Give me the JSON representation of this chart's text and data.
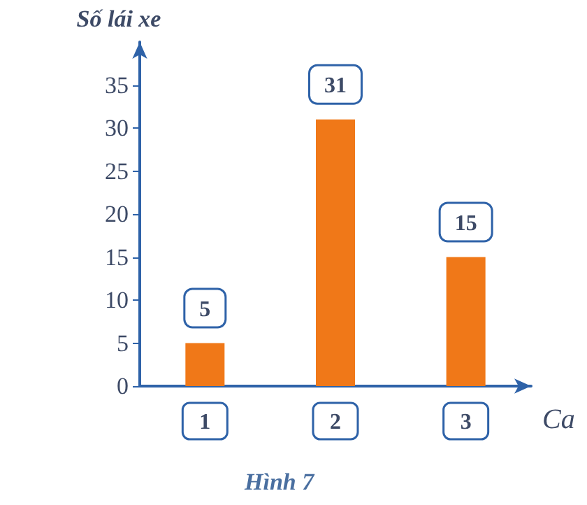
{
  "chart_data": {
    "type": "bar",
    "ylabel": "Số lái xe",
    "xlabel": "Ca",
    "categories": [
      "1",
      "2",
      "3"
    ],
    "values": [
      5,
      31,
      15
    ],
    "color": "#f07818",
    "ylim": [
      0,
      40
    ],
    "yticks": [
      0,
      5,
      10,
      15,
      20,
      25,
      30,
      35
    ],
    "data_labels": true,
    "grid": false,
    "annotations": [
      "Hình 7"
    ]
  }
}
